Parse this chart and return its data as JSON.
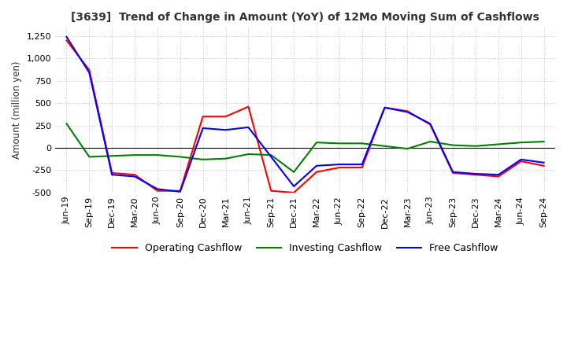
{
  "title": "[3639]  Trend of Change in Amount (YoY) of 12Mo Moving Sum of Cashflows",
  "ylabel": "Amount (million yen)",
  "x_labels": [
    "Jun-19",
    "Sep-19",
    "Dec-19",
    "Mar-20",
    "Jun-20",
    "Sep-20",
    "Dec-20",
    "Mar-21",
    "Jun-21",
    "Sep-21",
    "Dec-21",
    "Mar-22",
    "Jun-22",
    "Sep-22",
    "Dec-22",
    "Mar-23",
    "Jun-23",
    "Sep-23",
    "Dec-23",
    "Mar-24",
    "Jun-24",
    "Sep-24"
  ],
  "operating": [
    1200,
    870,
    -280,
    -300,
    -480,
    -480,
    350,
    350,
    460,
    -480,
    -500,
    -270,
    -220,
    -220,
    450,
    410,
    260,
    -280,
    -300,
    -320,
    -150,
    -200
  ],
  "investing": [
    270,
    -100,
    -90,
    -80,
    -80,
    -100,
    -130,
    -120,
    -70,
    -80,
    -270,
    60,
    50,
    50,
    20,
    -10,
    70,
    30,
    20,
    40,
    60,
    70
  ],
  "free": [
    1240,
    840,
    -300,
    -320,
    -460,
    -490,
    220,
    200,
    230,
    -100,
    -430,
    -200,
    -185,
    -185,
    450,
    400,
    270,
    -270,
    -290,
    -300,
    -130,
    -165
  ],
  "ylim": [
    -500,
    1350
  ],
  "yticks": [
    -500,
    -250,
    0,
    250,
    500,
    750,
    1000,
    1250
  ],
  "legend_labels": [
    "Operating Cashflow",
    "Investing Cashflow",
    "Free Cashflow"
  ],
  "line_colors": [
    "#ff0000",
    "#008000",
    "#0000ff"
  ],
  "bg_color": "#ffffff",
  "grid_color": "#bbbbbb"
}
